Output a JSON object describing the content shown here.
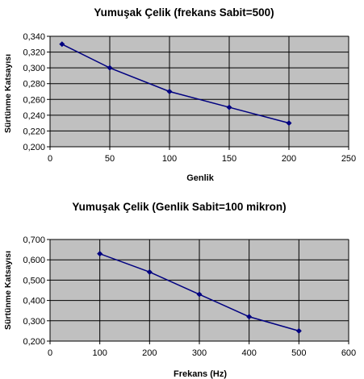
{
  "chart_data": [
    {
      "type": "line",
      "title": "Yumuşak Çelik (frekans Sabit=500)",
      "xlabel": "Genlik",
      "ylabel": "Sürtünme Katsayısı",
      "xlim": [
        0,
        250
      ],
      "ylim": [
        0.2,
        0.34
      ],
      "x_ticks": [
        "0",
        "50",
        "100",
        "150",
        "200",
        "250"
      ],
      "y_ticks": [
        "0,200",
        "0,220",
        "0,240",
        "0,260",
        "0,280",
        "0,300",
        "0,320",
        "0,340"
      ],
      "grid": true,
      "legend": "none",
      "colors": {
        "plot_bg": "#c0c0c0",
        "line": "#000080",
        "grid": "#000000"
      },
      "series": [
        {
          "x": [
            10,
            50,
            100,
            150,
            200
          ],
          "y": [
            0.33,
            0.3,
            0.27,
            0.25,
            0.23
          ]
        }
      ]
    },
    {
      "type": "line",
      "title": "Yumuşak Çelik (Genlik Sabit=100 mikron)",
      "xlabel": "Frekans (Hz)",
      "ylabel": "Sürtünme Katsayısı",
      "xlim": [
        0,
        600
      ],
      "ylim": [
        0.2,
        0.7
      ],
      "x_ticks": [
        "0",
        "100",
        "200",
        "300",
        "400",
        "500",
        "600"
      ],
      "y_ticks": [
        "0,200",
        "0,300",
        "0,400",
        "0,500",
        "0,600",
        "0,700"
      ],
      "grid": true,
      "legend": "none",
      "colors": {
        "plot_bg": "#c0c0c0",
        "line": "#000080",
        "grid": "#000000"
      },
      "series": [
        {
          "x": [
            100,
            200,
            300,
            400,
            500
          ],
          "y": [
            0.63,
            0.54,
            0.43,
            0.32,
            0.25
          ]
        }
      ]
    }
  ]
}
